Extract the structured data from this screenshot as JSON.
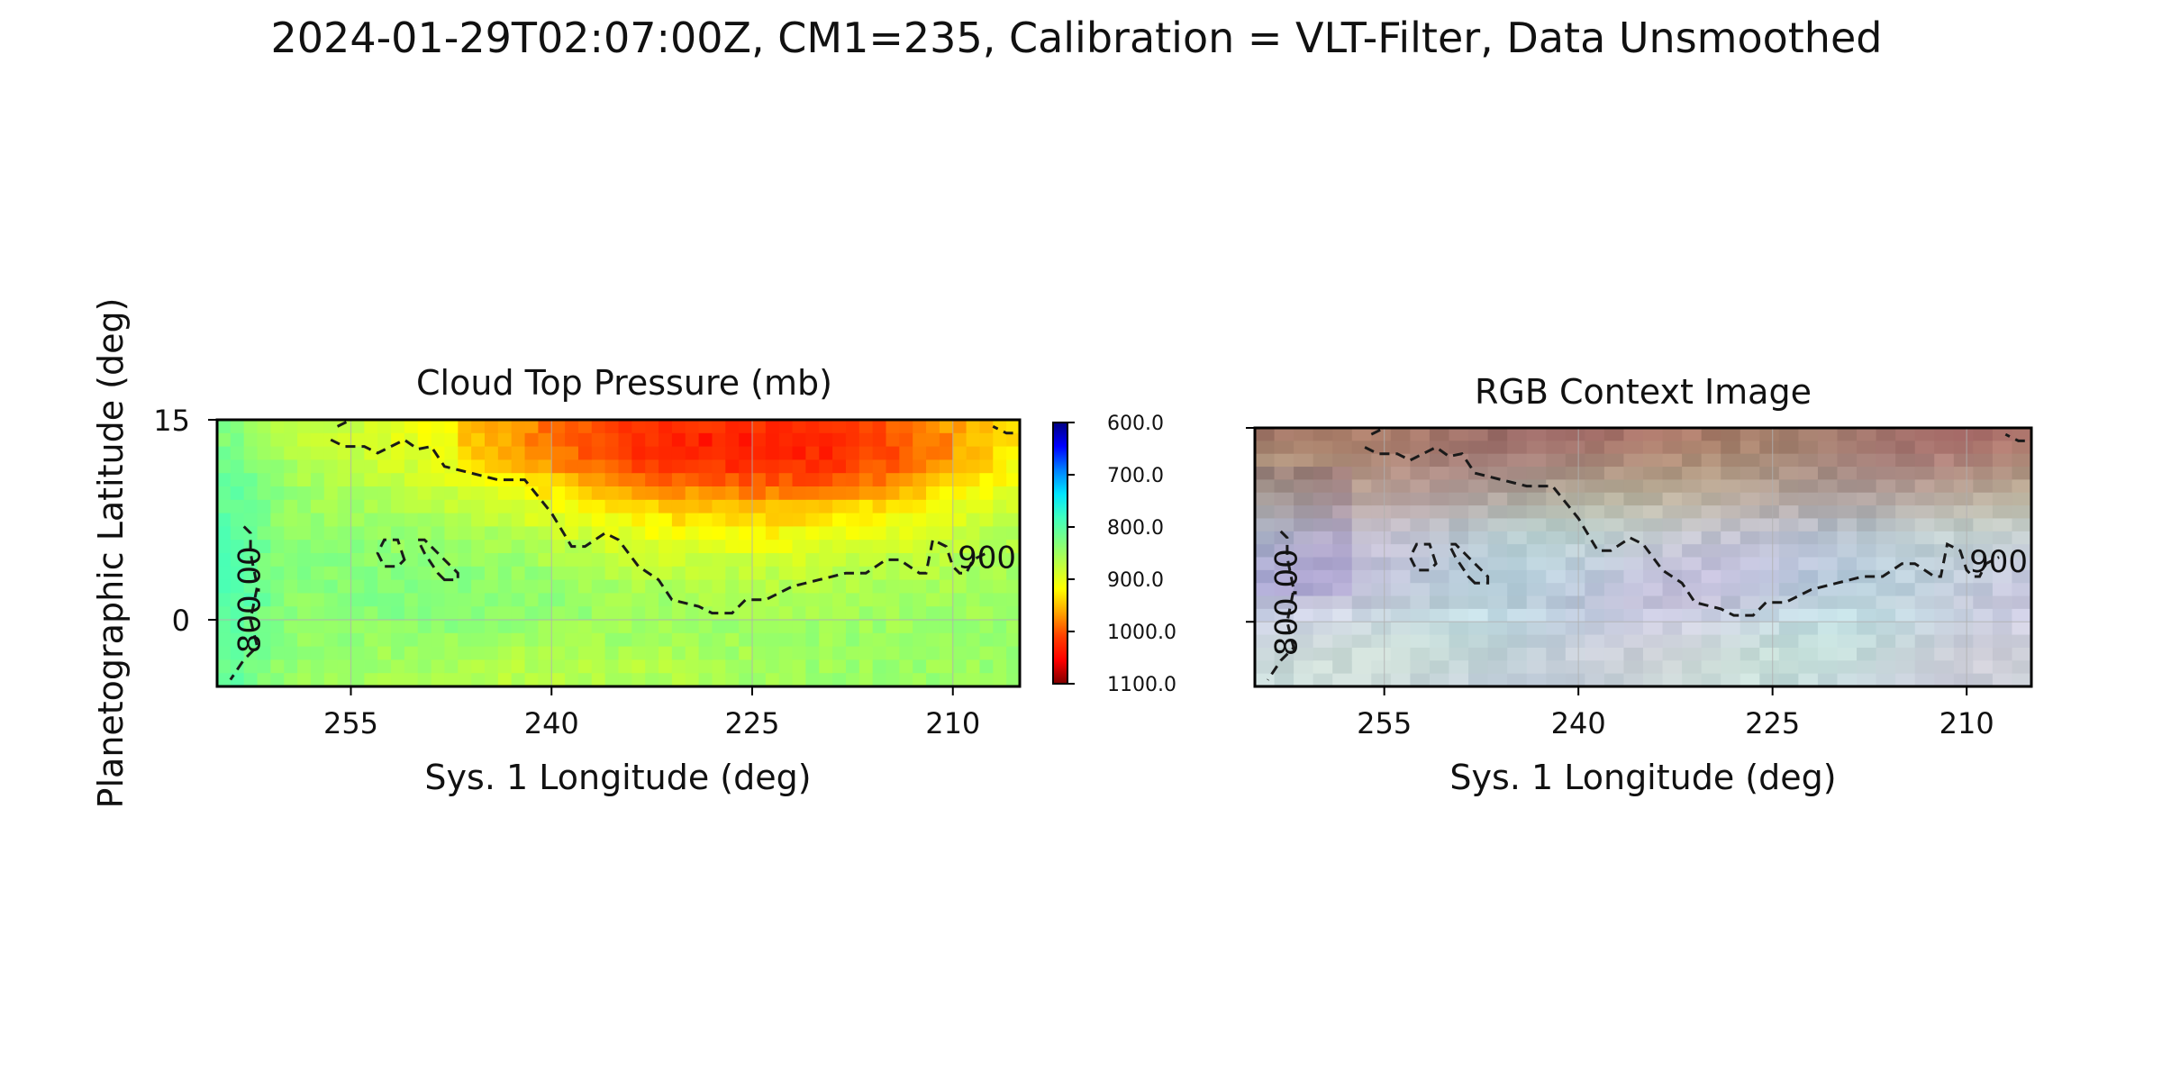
{
  "figure": {
    "suptitle": "2024-01-29T02:07:00Z, CM1=235, Calibration = VLT-Filter, Data Unsmoothed"
  },
  "colors": {
    "colormap": [
      "#000080",
      "#0000ff",
      "#0080ff",
      "#00e5ff",
      "#40ffbf",
      "#7fff80",
      "#bfff40",
      "#ffff00",
      "#ffa500",
      "#ff4000",
      "#ff0000",
      "#800000"
    ],
    "contour": "#1a1a1a",
    "grid": "#b0b0b0"
  },
  "chart_data": [
    {
      "type": "heatmap",
      "title": "Cloud Top Pressure (mb)",
      "xlabel": "Sys. 1 Longitude (deg)",
      "ylabel": "Planetographic Latitude (deg)",
      "xlim": [
        265,
        205
      ],
      "ylim": [
        -5,
        15
      ],
      "x_reversed": true,
      "xticks": [
        255,
        240,
        225,
        210
      ],
      "yticks": [
        15,
        0
      ],
      "grid": true,
      "colorbar": {
        "range": [
          600,
          1100
        ],
        "reversed": true,
        "ticks": [
          "600.0",
          "700.0",
          "800.0",
          "900.0",
          "1000.0",
          "1100.0"
        ]
      },
      "field_description": "pressure field: ~800 mb near lon 263, ~820-860 mb across the west/south, rising to ~950-990 mb in the north-central region around lon 225 lat 10",
      "contours": [
        {
          "level": "900",
          "label": "900",
          "style": "dashed",
          "points": [
            [
              256.5,
              13.5
            ],
            [
              255.5,
              13.0
            ],
            [
              254,
              13.0
            ],
            [
              253,
              12.5
            ],
            [
              251,
              13.5
            ],
            [
              250,
              12.8
            ],
            [
              249,
              13.0
            ],
            [
              248,
              11.5
            ],
            [
              246,
              11.0
            ],
            [
              244,
              10.5
            ],
            [
              242,
              10.5
            ],
            [
              240,
              8.0
            ],
            [
              238.5,
              5.5
            ],
            [
              237.5,
              5.5
            ],
            [
              236,
              6.5
            ],
            [
              235,
              6.0
            ],
            [
              233.5,
              4.0
            ],
            [
              232,
              3.0
            ],
            [
              231,
              1.5
            ],
            [
              229,
              1.0
            ],
            [
              228,
              0.5
            ],
            [
              226.5,
              0.5
            ],
            [
              225.5,
              1.5
            ],
            [
              224,
              1.5
            ],
            [
              222,
              2.5
            ],
            [
              220,
              3.0
            ],
            [
              218,
              3.5
            ],
            [
              216.5,
              3.5
            ],
            [
              215,
              4.5
            ],
            [
              214,
              4.5
            ],
            [
              212.5,
              3.5
            ],
            [
              212,
              3.5
            ],
            [
              211.5,
              6.0
            ],
            [
              210.5,
              5.5
            ],
            [
              210,
              4.0
            ],
            [
              209.5,
              3.5
            ],
            [
              209,
              3.5
            ],
            [
              208.5,
              4.5
            ],
            [
              207.5,
              5.0
            ]
          ]
        },
        {
          "level": "900",
          "label": "",
          "style": "dashed",
          "points": [
            [
              256,
              14.5
            ],
            [
              255,
              15.0
            ]
          ]
        },
        {
          "level": "900",
          "label": "",
          "style": "dashed",
          "points": [
            [
              205.5,
              14.0
            ],
            [
              206,
              14.0
            ],
            [
              207,
              14.5
            ]
          ]
        },
        {
          "level": "800",
          "label": "800.00",
          "style": "dashed",
          "points": [
            [
              263,
              7.0
            ],
            [
              262.5,
              6.5
            ],
            [
              262.5,
              5.0
            ],
            [
              262,
              2.5
            ],
            [
              262.5,
              0
            ],
            [
              262,
              -2.0
            ],
            [
              263,
              -3.0
            ],
            [
              264,
              -4.5
            ]
          ]
        },
        {
          "level": "900",
          "label": "",
          "style": "dashed",
          "closed": true,
          "points": [
            [
              251.0,
              4.5
            ],
            [
              251.5,
              6.0
            ],
            [
              252.5,
              6.0
            ],
            [
              253.0,
              5.0
            ],
            [
              252.5,
              4.0
            ],
            [
              251.5,
              4.0
            ]
          ]
        },
        {
          "level": "900",
          "label": "",
          "style": "dashed",
          "closed": true,
          "points": [
            [
              248.0,
              3.0
            ],
            [
              248.5,
              3.5
            ],
            [
              249.5,
              5.0
            ],
            [
              250.0,
              6.0
            ],
            [
              249.5,
              6.0
            ],
            [
              248.5,
              5.0
            ],
            [
              247.0,
              3.5
            ],
            [
              247.0,
              3.0
            ]
          ]
        }
      ]
    },
    {
      "type": "heatmap",
      "title": "RGB Context Image",
      "xlabel": "Sys. 1 Longitude (deg)",
      "ylabel": "",
      "xlim": [
        265,
        205
      ],
      "ylim": [
        -5,
        15
      ],
      "x_reversed": true,
      "xticks": [
        255,
        240,
        225,
        210
      ],
      "yticks": [
        15,
        0
      ],
      "ytick_labels_shown": false,
      "grid": true,
      "contour_labels": [
        "800.00",
        "900"
      ]
    }
  ]
}
